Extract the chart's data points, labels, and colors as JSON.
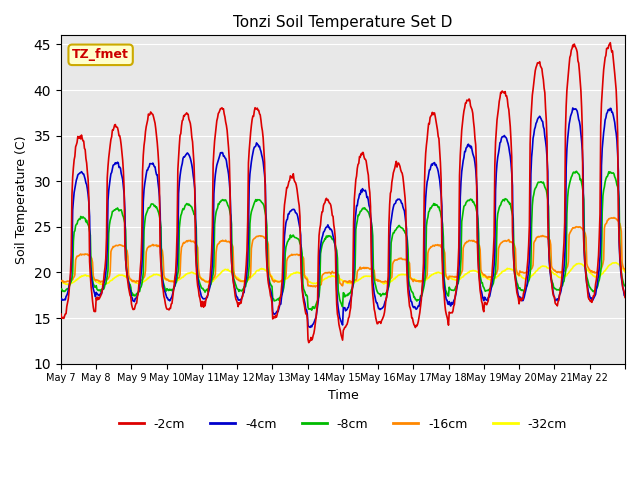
{
  "title": "Tonzi Soil Temperature Set D",
  "xlabel": "Time",
  "ylabel": "Soil Temperature (C)",
  "ylim": [
    10,
    46
  ],
  "yticks": [
    10,
    15,
    20,
    25,
    30,
    35,
    40,
    45
  ],
  "annotation_text": "TZ_fmet",
  "annotation_color": "#cc0000",
  "annotation_bg": "#ffffcc",
  "annotation_border": "#ccaa00",
  "background_color": "#e8e8e8",
  "series": {
    "-2cm": {
      "color": "#dd0000"
    },
    "-4cm": {
      "color": "#0000cc"
    },
    "-8cm": {
      "color": "#00bb00"
    },
    "-16cm": {
      "color": "#ff8800"
    },
    "-32cm": {
      "color": "#ffff00"
    }
  },
  "x_tick_labels": [
    "May 7",
    "May 8",
    "May 9",
    "May 10",
    "May 11",
    "May 12",
    "May 13",
    "May 14",
    "May 15",
    "May 16",
    "May 17",
    "May 18",
    "May 19",
    "May 20",
    "May 21",
    "May 22"
  ],
  "num_days": 16
}
